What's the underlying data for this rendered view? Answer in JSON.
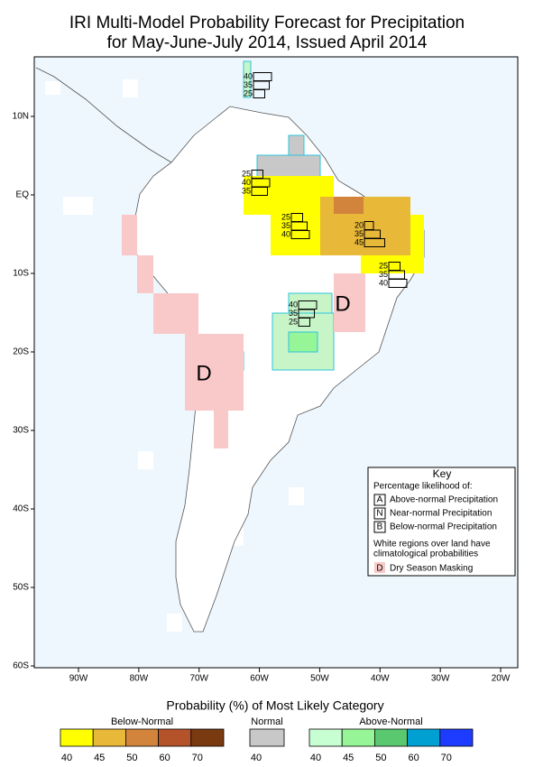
{
  "title": [
    "IRI Multi-Model Probability Forecast for Precipitation",
    "for May-June-July 2014, Issued April 2014"
  ],
  "lat_ticks": [
    {
      "value": 10,
      "label": "10N"
    },
    {
      "value": 0,
      "label": "EQ"
    },
    {
      "value": -10,
      "label": "10S"
    },
    {
      "value": -20,
      "label": "20S"
    },
    {
      "value": -30,
      "label": "30S"
    },
    {
      "value": -40,
      "label": "40S"
    },
    {
      "value": -50,
      "label": "50S"
    },
    {
      "value": -60,
      "label": "60S"
    }
  ],
  "lon_ticks": [
    {
      "value": -90,
      "label": "90W"
    },
    {
      "value": -80,
      "label": "80W"
    },
    {
      "value": -70,
      "label": "70W"
    },
    {
      "value": -60,
      "label": "60W"
    },
    {
      "value": -50,
      "label": "50W"
    },
    {
      "value": -40,
      "label": "40W"
    },
    {
      "value": -30,
      "label": "30W"
    },
    {
      "value": -20,
      "label": "20W"
    }
  ],
  "forecasts": [
    [
      40,
      35,
      25
    ],
    [
      25,
      40,
      35
    ],
    [
      25,
      35,
      40
    ],
    [
      20,
      35,
      45
    ],
    [
      25,
      35,
      40
    ],
    [
      40,
      35,
      25
    ]
  ],
  "dry_season_marks": [
    "D",
    "D"
  ],
  "key": {
    "title": "Key",
    "subtitle": "Percentage likelihood of:",
    "items": [
      {
        "letter": "A",
        "text": "Above-normal Precipitation"
      },
      {
        "letter": "N",
        "text": "Near-normal Precipitation"
      },
      {
        "letter": "B",
        "text": "Below-normal Precipitation"
      }
    ],
    "note": [
      "White regions over land have",
      "climatological probabilities"
    ],
    "dry": {
      "letter": "D",
      "text": "Dry Season Masking",
      "color": "#f9c8c8"
    }
  },
  "legend": {
    "title": "Probability (%) of Most Likely Category",
    "groups": [
      {
        "name": "Below-Normal",
        "ticks": [
          40,
          45,
          50,
          60,
          70
        ],
        "colors": [
          "#ffff00",
          "#e8b838",
          "#d2843c",
          "#b4522a",
          "#7a3a10"
        ]
      },
      {
        "name": "Normal",
        "ticks": [
          40
        ],
        "colors": [
          "#c8c8c8"
        ]
      },
      {
        "name": "Above-Normal",
        "ticks": [
          40,
          45,
          50,
          60,
          70
        ],
        "colors": [
          "#c8ffd2",
          "#96f596",
          "#5ac86e",
          "#00a0d2",
          "#1e3cff"
        ]
      }
    ]
  }
}
